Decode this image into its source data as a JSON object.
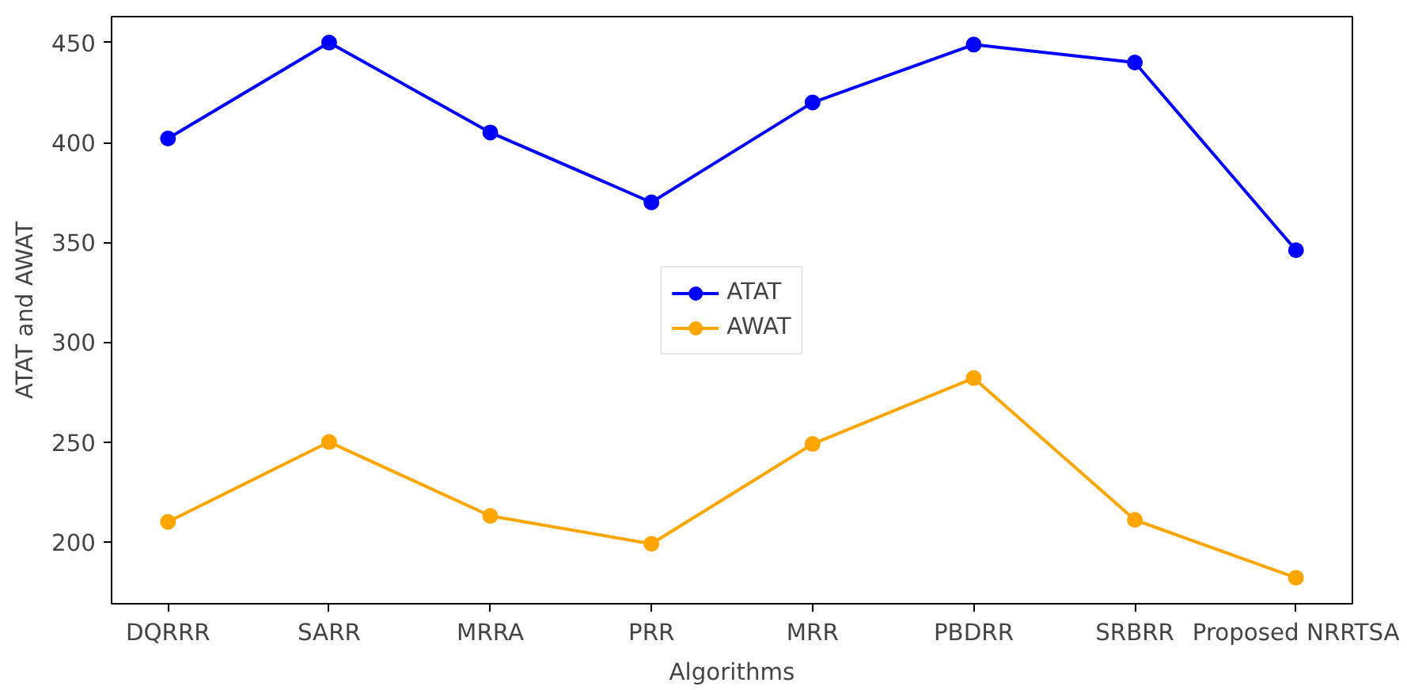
{
  "chart_data": {
    "type": "line",
    "xlabel": "Algorithms",
    "ylabel": "ATAT and AWAT",
    "categories": [
      "DQRRR",
      "SARR",
      "MRRA",
      "PRR",
      "MRR",
      "PBDRR",
      "SRBRR",
      "Proposed NRRTSA"
    ],
    "series": [
      {
        "name": "ATAT",
        "color": "#0000ff",
        "values": [
          402,
          450,
          405,
          370,
          420,
          449,
          440,
          346
        ]
      },
      {
        "name": "AWAT",
        "color": "#ffa500",
        "values": [
          210,
          250,
          213,
          199,
          249,
          282,
          211,
          182
        ]
      }
    ],
    "ylim": [
      169,
      463
    ],
    "yticks": [
      200,
      250,
      300,
      350,
      400,
      450
    ],
    "grid": false,
    "legend": "center",
    "marker": "circle",
    "line_style": "solid"
  }
}
